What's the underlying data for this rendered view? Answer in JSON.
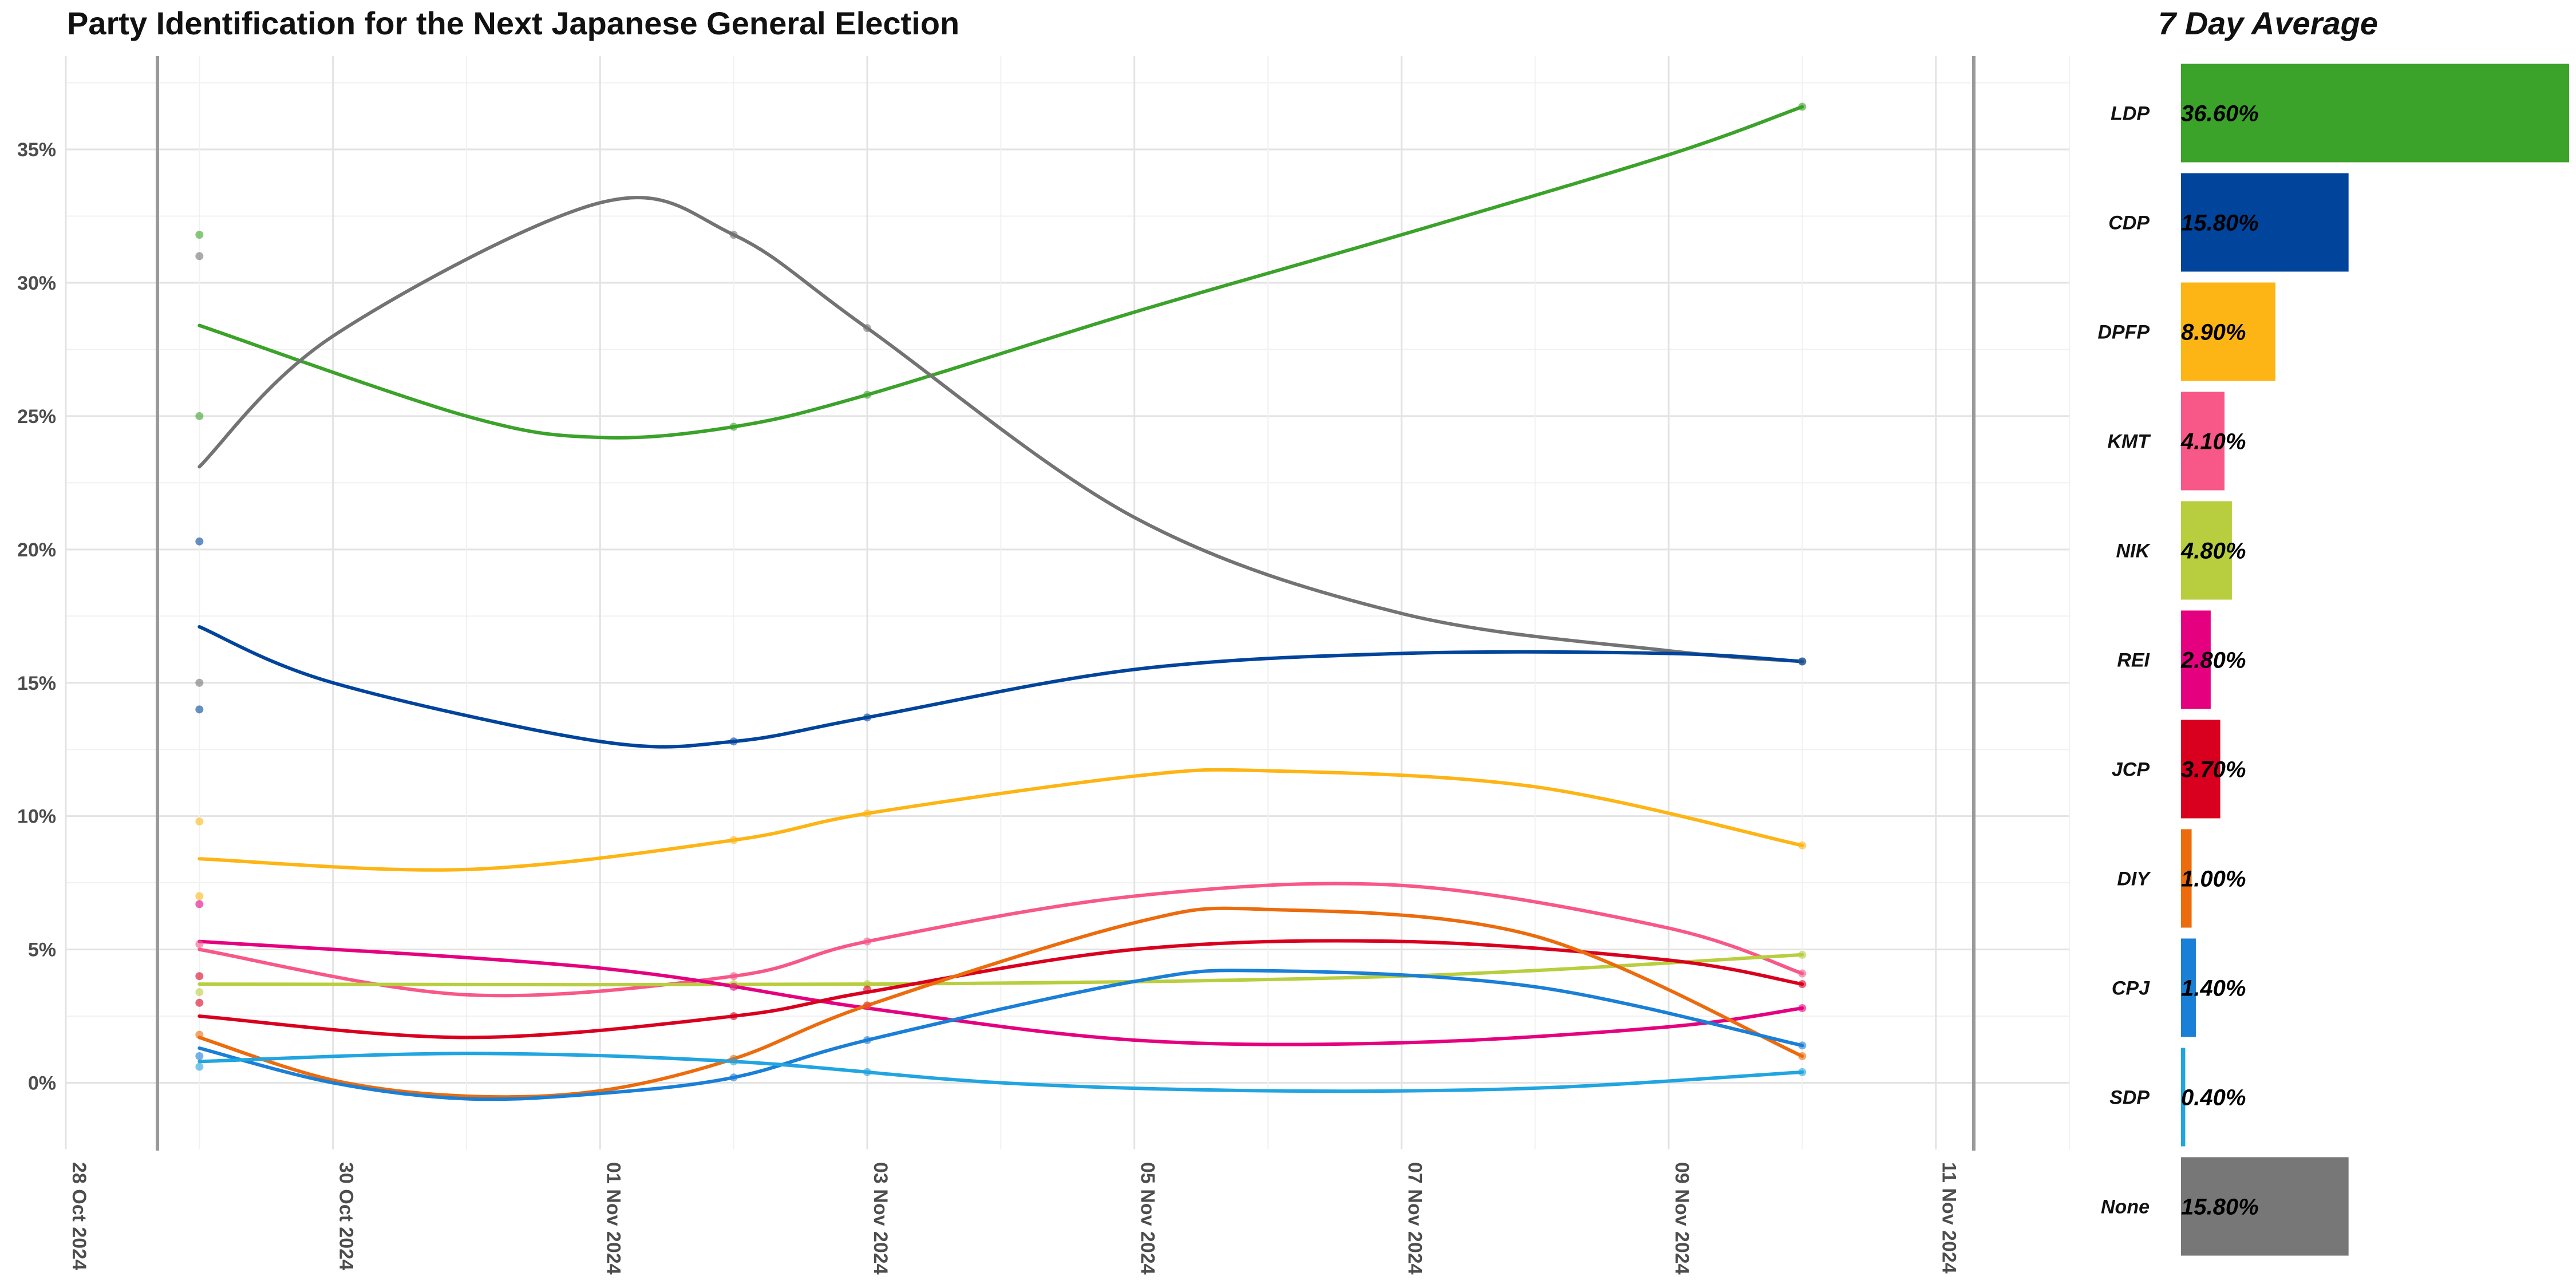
{
  "chart_data": [
    {
      "type": "line",
      "title": "Party Identification for the Next Japanese General Election",
      "xlabel": "",
      "ylabel": "",
      "x_axis": {
        "type": "date",
        "range": [
          "2024-10-28",
          "2024-11-12"
        ],
        "tick_labels": [
          "28 Oct 2024",
          "30 Oct 2024",
          "01 Nov 2024",
          "03 Nov 2024",
          "05 Nov 2024",
          "07 Nov 2024",
          "09 Nov 2024",
          "11 Nov 2024"
        ]
      },
      "y_axis": {
        "range": [
          -2.5,
          38.5
        ],
        "tick_labels": [
          "0%",
          "5%",
          "10%",
          "15%",
          "20%",
          "25%",
          "30%",
          "35%"
        ]
      },
      "grid": true,
      "legend": "none",
      "series": [
        {
          "name": "LDP",
          "color": "#3BA22A",
          "points": [
            [
              "2024-10-29",
              31.8
            ],
            [
              "2024-10-29",
              25.0
            ],
            [
              "2024-11-02",
              24.6
            ],
            [
              "2024-11-03",
              25.8
            ],
            [
              "2024-11-10",
              36.6
            ]
          ],
          "trend": [
            [
              "2024-10-29",
              28.4
            ],
            [
              "2024-10-31",
              25.0
            ],
            [
              "2024-11-01",
              24.2
            ],
            [
              "2024-11-02",
              24.6
            ],
            [
              "2024-11-03",
              25.8
            ],
            [
              "2024-11-05",
              28.9
            ],
            [
              "2024-11-07",
              31.8
            ],
            [
              "2024-11-09",
              34.8
            ],
            [
              "2024-11-10",
              36.6
            ]
          ]
        },
        {
          "name": "None",
          "color": "#737373",
          "points": [
            [
              "2024-10-29",
              31.0
            ],
            [
              "2024-10-29",
              15.0
            ],
            [
              "2024-11-02",
              31.8
            ],
            [
              "2024-11-03",
              28.3
            ],
            [
              "2024-11-10",
              15.8
            ]
          ],
          "trend": [
            [
              "2024-10-29",
              23.1
            ],
            [
              "2024-10-30",
              28.0
            ],
            [
              "2024-11-01",
              33.0
            ],
            [
              "2024-11-02",
              31.8
            ],
            [
              "2024-11-03",
              28.3
            ],
            [
              "2024-11-05",
              21.2
            ],
            [
              "2024-11-07",
              17.6
            ],
            [
              "2024-11-09",
              16.2
            ],
            [
              "2024-11-10",
              15.8
            ]
          ]
        },
        {
          "name": "CDP",
          "color": "#00449C",
          "points": [
            [
              "2024-10-29",
              20.3
            ],
            [
              "2024-10-29",
              14.0
            ],
            [
              "2024-11-02",
              12.8
            ],
            [
              "2024-11-03",
              13.7
            ],
            [
              "2024-11-10",
              15.8
            ]
          ],
          "trend": [
            [
              "2024-10-29",
              17.1
            ],
            [
              "2024-10-30",
              15.0
            ],
            [
              "2024-11-01",
              12.8
            ],
            [
              "2024-11-02",
              12.8
            ],
            [
              "2024-11-03",
              13.7
            ],
            [
              "2024-11-05",
              15.5
            ],
            [
              "2024-11-07",
              16.1
            ],
            [
              "2024-11-09",
              16.1
            ],
            [
              "2024-11-10",
              15.8
            ]
          ]
        },
        {
          "name": "DPFP",
          "color": "#FDB515",
          "points": [
            [
              "2024-10-29",
              9.8
            ],
            [
              "2024-10-29",
              7.0
            ],
            [
              "2024-11-02",
              9.1
            ],
            [
              "2024-11-03",
              10.1
            ],
            [
              "2024-11-10",
              8.9
            ]
          ],
          "trend": [
            [
              "2024-10-29",
              8.4
            ],
            [
              "2024-10-31",
              8.0
            ],
            [
              "2024-11-02",
              9.1
            ],
            [
              "2024-11-03",
              10.1
            ],
            [
              "2024-11-05",
              11.5
            ],
            [
              "2024-11-06",
              11.7
            ],
            [
              "2024-11-08",
              11.1
            ],
            [
              "2024-11-10",
              8.9
            ]
          ]
        },
        {
          "name": "KMT",
          "color": "#F75887",
          "points": [
            [
              "2024-10-29",
              5.2
            ],
            [
              "2024-11-02",
              4.0
            ],
            [
              "2024-11-03",
              5.3
            ],
            [
              "2024-11-10",
              4.1
            ]
          ],
          "trend": [
            [
              "2024-10-29",
              5.0
            ],
            [
              "2024-10-31",
              3.3
            ],
            [
              "2024-11-02",
              4.0
            ],
            [
              "2024-11-03",
              5.3
            ],
            [
              "2024-11-05",
              7.0
            ],
            [
              "2024-11-07",
              7.4
            ],
            [
              "2024-11-09",
              5.8
            ],
            [
              "2024-11-10",
              4.1
            ]
          ]
        },
        {
          "name": "NIK",
          "color": "#B8CE3E",
          "points": [
            [
              "2024-10-29",
              3.4
            ],
            [
              "2024-11-02",
              3.7
            ],
            [
              "2024-11-03",
              3.7
            ],
            [
              "2024-11-10",
              4.8
            ]
          ],
          "trend": [
            [
              "2024-10-29",
              3.7
            ],
            [
              "2024-11-03",
              3.7
            ],
            [
              "2024-11-07",
              4.0
            ],
            [
              "2024-11-10",
              4.8
            ]
          ]
        },
        {
          "name": "REI",
          "color": "#E5007F",
          "points": [
            [
              "2024-10-29",
              6.7
            ],
            [
              "2024-11-02",
              3.6
            ],
            [
              "2024-11-03",
              2.9
            ],
            [
              "2024-11-10",
              2.8
            ]
          ],
          "trend": [
            [
              "2024-10-29",
              5.3
            ],
            [
              "2024-11-01",
              4.3
            ],
            [
              "2024-11-03",
              2.8
            ],
            [
              "2024-11-05",
              1.6
            ],
            [
              "2024-11-07",
              1.5
            ],
            [
              "2024-11-09",
              2.1
            ],
            [
              "2024-11-10",
              2.8
            ]
          ]
        },
        {
          "name": "JCP",
          "color": "#D9001F",
          "points": [
            [
              "2024-10-29",
              3.0
            ],
            [
              "2024-10-29",
              4.0
            ],
            [
              "2024-11-02",
              2.5
            ],
            [
              "2024-11-03",
              3.5
            ],
            [
              "2024-11-10",
              3.7
            ]
          ],
          "trend": [
            [
              "2024-10-29",
              2.5
            ],
            [
              "2024-10-31",
              1.7
            ],
            [
              "2024-11-02",
              2.5
            ],
            [
              "2024-11-03",
              3.4
            ],
            [
              "2024-11-05",
              5.0
            ],
            [
              "2024-11-07",
              5.3
            ],
            [
              "2024-11-09",
              4.6
            ],
            [
              "2024-11-10",
              3.7
            ]
          ]
        },
        {
          "name": "DIY",
          "color": "#EC6B0C",
          "points": [
            [
              "2024-10-29",
              1.8
            ],
            [
              "2024-11-02",
              0.9
            ],
            [
              "2024-11-03",
              2.9
            ],
            [
              "2024-11-10",
              1.0
            ]
          ],
          "trend": [
            [
              "2024-10-29",
              1.7
            ],
            [
              "2024-10-30",
              0.1
            ],
            [
              "2024-10-31",
              -0.5
            ],
            [
              "2024-11-01",
              -0.3
            ],
            [
              "2024-11-02",
              0.9
            ],
            [
              "2024-11-03",
              2.9
            ],
            [
              "2024-11-05",
              6.0
            ],
            [
              "2024-11-06",
              6.5
            ],
            [
              "2024-11-08",
              5.5
            ],
            [
              "2024-11-10",
              1.0
            ]
          ]
        },
        {
          "name": "CPJ",
          "color": "#1A7FD6",
          "points": [
            [
              "2024-10-29",
              1.0
            ],
            [
              "2024-11-02",
              0.2
            ],
            [
              "2024-11-03",
              1.6
            ],
            [
              "2024-11-10",
              1.4
            ]
          ],
          "trend": [
            [
              "2024-10-29",
              1.3
            ],
            [
              "2024-10-30",
              0.0
            ],
            [
              "2024-10-31",
              -0.6
            ],
            [
              "2024-11-01",
              -0.4
            ],
            [
              "2024-11-02",
              0.2
            ],
            [
              "2024-11-03",
              1.6
            ],
            [
              "2024-11-05",
              3.8
            ],
            [
              "2024-11-06",
              4.2
            ],
            [
              "2024-11-08",
              3.6
            ],
            [
              "2024-11-10",
              1.4
            ]
          ]
        },
        {
          "name": "SDP",
          "color": "#21A5E0",
          "points": [
            [
              "2024-10-29",
              0.6
            ],
            [
              "2024-11-02",
              0.8
            ],
            [
              "2024-11-03",
              0.4
            ],
            [
              "2024-11-10",
              0.4
            ]
          ],
          "trend": [
            [
              "2024-10-29",
              0.8
            ],
            [
              "2024-10-31",
              1.1
            ],
            [
              "2024-11-02",
              0.8
            ],
            [
              "2024-11-04",
              0.0
            ],
            [
              "2024-11-06",
              -0.3
            ],
            [
              "2024-11-08",
              -0.2
            ],
            [
              "2024-11-10",
              0.4
            ]
          ]
        }
      ]
    },
    {
      "type": "bar",
      "title": "7 Day Average",
      "orientation": "horizontal",
      "xlim": [
        0,
        36.6
      ],
      "categories": [
        "LDP",
        "CDP",
        "DPFP",
        "KMT",
        "NIK",
        "REI",
        "JCP",
        "DIY",
        "CPJ",
        "SDP",
        "None"
      ],
      "values": [
        36.6,
        15.8,
        8.9,
        4.1,
        4.8,
        2.8,
        3.7,
        1.0,
        1.4,
        0.4,
        15.8
      ],
      "labels": [
        "36.60%",
        "15.80%",
        "8.90%",
        "4.10%",
        "4.80%",
        "2.80%",
        "3.70%",
        "1.00%",
        "1.40%",
        "0.40%",
        "15.80%"
      ],
      "colors": [
        "#3BA22A",
        "#00449C",
        "#FDB515",
        "#F75887",
        "#B8CE3E",
        "#E5007F",
        "#D9001F",
        "#EC6B0C",
        "#1A7FD6",
        "#21A5E0",
        "#777777"
      ]
    }
  ]
}
